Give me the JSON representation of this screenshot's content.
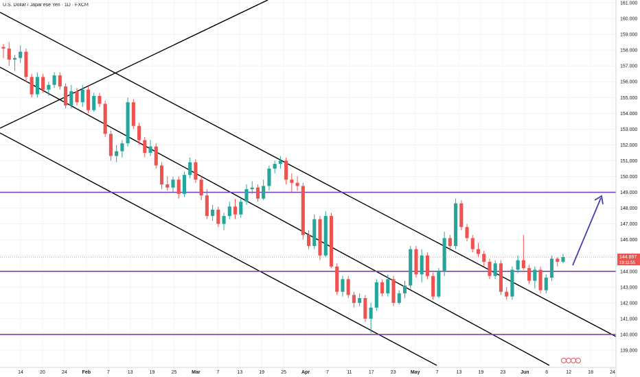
{
  "header": {
    "title": "U.S. Dollar / Japanese Yen · 1D · FXCM"
  },
  "price_badge": {
    "price": "144.897",
    "countdown": "19:11:55"
  },
  "colors": {
    "up": "#26a69a",
    "down": "#ef5350",
    "horizontal_line": "#7b3fc4",
    "channel_line": "#000000",
    "arrow": "#3f3fa8",
    "badge": "#ef5350"
  },
  "chart_data": {
    "type": "candlestick",
    "ylim": [
      138.5,
      161.2
    ],
    "y_ticks": [
      "139.000",
      "140.000",
      "141.000",
      "142.000",
      "143.000",
      "144.000",
      "145.000",
      "146.000",
      "147.000",
      "148.000",
      "149.000",
      "150.000",
      "151.000",
      "152.000",
      "153.000",
      "154.000",
      "155.000",
      "156.000",
      "157.000",
      "158.000",
      "159.000",
      "160.000",
      "161.000"
    ],
    "x_ticks": [
      {
        "label": "14",
        "bold": false
      },
      {
        "label": "20",
        "bold": false
      },
      {
        "label": "24",
        "bold": false
      },
      {
        "label": "Feb",
        "bold": true
      },
      {
        "label": "7",
        "bold": false
      },
      {
        "label": "13",
        "bold": false
      },
      {
        "label": "19",
        "bold": false
      },
      {
        "label": "25",
        "bold": false
      },
      {
        "label": "Mar",
        "bold": true
      },
      {
        "label": "7",
        "bold": false
      },
      {
        "label": "13",
        "bold": false
      },
      {
        "label": "19",
        "bold": false
      },
      {
        "label": "25",
        "bold": false
      },
      {
        "label": "Apr",
        "bold": true
      },
      {
        "label": "7",
        "bold": false
      },
      {
        "label": "11",
        "bold": false
      },
      {
        "label": "17",
        "bold": false
      },
      {
        "label": "23",
        "bold": false
      },
      {
        "label": "May",
        "bold": true
      },
      {
        "label": "7",
        "bold": false
      },
      {
        "label": "13",
        "bold": false
      },
      {
        "label": "19",
        "bold": false
      },
      {
        "label": "23",
        "bold": false
      },
      {
        "label": "Jun",
        "bold": true
      },
      {
        "label": "6",
        "bold": false
      },
      {
        "label": "12",
        "bold": false
      },
      {
        "label": "18",
        "bold": false
      },
      {
        "label": "24",
        "bold": false
      }
    ],
    "horizontal_levels": [
      149.0,
      144.0,
      140.0
    ],
    "candles": [
      {
        "o": 158.2,
        "h": 158.4,
        "l": 157.5,
        "c": 158.1
      },
      {
        "o": 158.1,
        "h": 158.5,
        "l": 157.0,
        "c": 157.4
      },
      {
        "o": 157.4,
        "h": 157.7,
        "l": 156.7,
        "c": 157.5
      },
      {
        "o": 157.5,
        "h": 158.3,
        "l": 157.2,
        "c": 157.9
      },
      {
        "o": 157.9,
        "h": 158.1,
        "l": 156.0,
        "c": 156.3
      },
      {
        "o": 156.3,
        "h": 156.5,
        "l": 155.0,
        "c": 155.2
      },
      {
        "o": 155.2,
        "h": 156.6,
        "l": 155.0,
        "c": 156.3
      },
      {
        "o": 156.3,
        "h": 156.5,
        "l": 155.3,
        "c": 155.5
      },
      {
        "o": 155.5,
        "h": 156.0,
        "l": 155.1,
        "c": 155.8
      },
      {
        "o": 155.8,
        "h": 156.6,
        "l": 155.6,
        "c": 156.4
      },
      {
        "o": 156.4,
        "h": 156.6,
        "l": 155.5,
        "c": 155.7
      },
      {
        "o": 155.7,
        "h": 155.9,
        "l": 154.3,
        "c": 154.5
      },
      {
        "o": 154.5,
        "h": 155.8,
        "l": 154.3,
        "c": 155.4
      },
      {
        "o": 155.4,
        "h": 155.6,
        "l": 154.5,
        "c": 154.7
      },
      {
        "o": 154.7,
        "h": 155.8,
        "l": 154.4,
        "c": 155.5
      },
      {
        "o": 155.5,
        "h": 155.7,
        "l": 154.0,
        "c": 154.2
      },
      {
        "o": 154.2,
        "h": 155.3,
        "l": 154.1,
        "c": 155.1
      },
      {
        "o": 155.1,
        "h": 155.3,
        "l": 154.4,
        "c": 154.6
      },
      {
        "o": 154.6,
        "h": 154.8,
        "l": 152.5,
        "c": 152.7
      },
      {
        "o": 152.7,
        "h": 152.9,
        "l": 151.0,
        "c": 151.3
      },
      {
        "o": 151.3,
        "h": 152.0,
        "l": 150.9,
        "c": 151.6
      },
      {
        "o": 151.6,
        "h": 152.3,
        "l": 151.2,
        "c": 152.1
      },
      {
        "o": 152.1,
        "h": 155.0,
        "l": 151.9,
        "c": 154.7
      },
      {
        "o": 154.7,
        "h": 154.9,
        "l": 153.0,
        "c": 153.2
      },
      {
        "o": 153.2,
        "h": 153.4,
        "l": 152.0,
        "c": 152.3
      },
      {
        "o": 152.3,
        "h": 152.5,
        "l": 151.2,
        "c": 151.5
      },
      {
        "o": 151.5,
        "h": 152.3,
        "l": 151.3,
        "c": 151.9
      },
      {
        "o": 151.9,
        "h": 152.1,
        "l": 150.5,
        "c": 150.7
      },
      {
        "o": 150.7,
        "h": 150.9,
        "l": 149.2,
        "c": 149.5
      },
      {
        "o": 149.5,
        "h": 150.0,
        "l": 149.1,
        "c": 149.3
      },
      {
        "o": 149.3,
        "h": 150.0,
        "l": 149.0,
        "c": 149.8
      },
      {
        "o": 149.8,
        "h": 150.0,
        "l": 148.6,
        "c": 148.9
      },
      {
        "o": 148.9,
        "h": 150.3,
        "l": 148.7,
        "c": 150.1
      },
      {
        "o": 150.1,
        "h": 151.2,
        "l": 149.9,
        "c": 150.9
      },
      {
        "o": 150.9,
        "h": 151.1,
        "l": 149.6,
        "c": 149.8
      },
      {
        "o": 149.8,
        "h": 150.0,
        "l": 148.5,
        "c": 148.8
      },
      {
        "o": 148.8,
        "h": 149.2,
        "l": 147.3,
        "c": 147.5
      },
      {
        "o": 147.5,
        "h": 148.2,
        "l": 147.2,
        "c": 147.9
      },
      {
        "o": 147.9,
        "h": 148.1,
        "l": 146.8,
        "c": 147.0
      },
      {
        "o": 147.0,
        "h": 147.7,
        "l": 146.6,
        "c": 147.5
      },
      {
        "o": 147.5,
        "h": 148.4,
        "l": 147.3,
        "c": 148.1
      },
      {
        "o": 148.1,
        "h": 148.6,
        "l": 147.3,
        "c": 147.6
      },
      {
        "o": 147.6,
        "h": 148.6,
        "l": 147.4,
        "c": 148.4
      },
      {
        "o": 148.4,
        "h": 149.5,
        "l": 148.2,
        "c": 149.2
      },
      {
        "o": 149.2,
        "h": 149.7,
        "l": 148.9,
        "c": 149.3
      },
      {
        "o": 149.3,
        "h": 149.5,
        "l": 148.4,
        "c": 148.6
      },
      {
        "o": 148.6,
        "h": 149.8,
        "l": 148.5,
        "c": 149.4
      },
      {
        "o": 149.4,
        "h": 150.7,
        "l": 149.1,
        "c": 150.5
      },
      {
        "o": 150.5,
        "h": 151.0,
        "l": 150.2,
        "c": 150.8
      },
      {
        "o": 150.8,
        "h": 151.3,
        "l": 150.5,
        "c": 151.0
      },
      {
        "o": 151.0,
        "h": 151.2,
        "l": 149.5,
        "c": 149.8
      },
      {
        "o": 149.8,
        "h": 150.2,
        "l": 149.0,
        "c": 149.6
      },
      {
        "o": 149.6,
        "h": 150.0,
        "l": 149.1,
        "c": 149.4
      },
      {
        "o": 149.4,
        "h": 149.6,
        "l": 146.0,
        "c": 146.3
      },
      {
        "o": 146.3,
        "h": 146.6,
        "l": 145.4,
        "c": 145.6
      },
      {
        "o": 145.6,
        "h": 147.6,
        "l": 145.4,
        "c": 147.3
      },
      {
        "o": 147.3,
        "h": 147.5,
        "l": 144.7,
        "c": 145.0
      },
      {
        "o": 145.0,
        "h": 147.8,
        "l": 144.9,
        "c": 147.5
      },
      {
        "o": 147.5,
        "h": 147.7,
        "l": 144.2,
        "c": 144.3
      },
      {
        "o": 144.3,
        "h": 144.5,
        "l": 142.5,
        "c": 142.7
      },
      {
        "o": 142.7,
        "h": 143.7,
        "l": 142.4,
        "c": 143.5
      },
      {
        "o": 143.5,
        "h": 143.7,
        "l": 142.3,
        "c": 142.5
      },
      {
        "o": 142.5,
        "h": 142.7,
        "l": 141.7,
        "c": 142.0
      },
      {
        "o": 142.0,
        "h": 142.6,
        "l": 141.8,
        "c": 142.3
      },
      {
        "o": 142.3,
        "h": 142.5,
        "l": 140.8,
        "c": 141.0
      },
      {
        "o": 141.0,
        "h": 142.0,
        "l": 140.1,
        "c": 141.7
      },
      {
        "o": 141.7,
        "h": 143.5,
        "l": 141.5,
        "c": 143.3
      },
      {
        "o": 143.3,
        "h": 143.5,
        "l": 142.4,
        "c": 142.6
      },
      {
        "o": 142.6,
        "h": 143.8,
        "l": 142.4,
        "c": 143.5
      },
      {
        "o": 143.5,
        "h": 143.7,
        "l": 141.8,
        "c": 142.0
      },
      {
        "o": 142.0,
        "h": 142.8,
        "l": 141.9,
        "c": 142.6
      },
      {
        "o": 142.6,
        "h": 143.4,
        "l": 142.3,
        "c": 143.1
      },
      {
        "o": 143.1,
        "h": 145.6,
        "l": 142.9,
        "c": 145.4
      },
      {
        "o": 145.4,
        "h": 145.6,
        "l": 143.6,
        "c": 143.8
      },
      {
        "o": 143.8,
        "h": 145.4,
        "l": 143.3,
        "c": 145.0
      },
      {
        "o": 145.0,
        "h": 145.2,
        "l": 143.5,
        "c": 143.7
      },
      {
        "o": 143.7,
        "h": 143.9,
        "l": 142.2,
        "c": 142.4
      },
      {
        "o": 142.4,
        "h": 144.2,
        "l": 142.3,
        "c": 144.0
      },
      {
        "o": 144.0,
        "h": 146.5,
        "l": 143.7,
        "c": 146.1
      },
      {
        "o": 146.1,
        "h": 146.3,
        "l": 145.3,
        "c": 145.6
      },
      {
        "o": 145.6,
        "h": 148.6,
        "l": 145.4,
        "c": 148.3
      },
      {
        "o": 148.3,
        "h": 148.5,
        "l": 146.6,
        "c": 146.8
      },
      {
        "o": 146.8,
        "h": 147.0,
        "l": 145.9,
        "c": 146.1
      },
      {
        "o": 146.1,
        "h": 146.3,
        "l": 145.2,
        "c": 145.4
      },
      {
        "o": 145.4,
        "h": 145.8,
        "l": 144.9,
        "c": 145.1
      },
      {
        "o": 145.1,
        "h": 145.3,
        "l": 144.3,
        "c": 144.6
      },
      {
        "o": 144.6,
        "h": 144.8,
        "l": 143.5,
        "c": 143.7
      },
      {
        "o": 143.7,
        "h": 144.7,
        "l": 143.5,
        "c": 144.5
      },
      {
        "o": 144.5,
        "h": 144.7,
        "l": 142.5,
        "c": 142.7
      },
      {
        "o": 142.7,
        "h": 143.0,
        "l": 142.2,
        "c": 142.4
      },
      {
        "o": 142.4,
        "h": 144.3,
        "l": 142.2,
        "c": 144.1
      },
      {
        "o": 144.1,
        "h": 145.0,
        "l": 143.9,
        "c": 144.7
      },
      {
        "o": 144.7,
        "h": 146.3,
        "l": 144.1,
        "c": 144.2
      },
      {
        "o": 144.2,
        "h": 144.4,
        "l": 143.2,
        "c": 143.4
      },
      {
        "o": 143.4,
        "h": 144.3,
        "l": 142.9,
        "c": 144.1
      },
      {
        "o": 144.1,
        "h": 144.3,
        "l": 142.6,
        "c": 142.8
      },
      {
        "o": 142.8,
        "h": 143.8,
        "l": 142.6,
        "c": 143.6
      },
      {
        "o": 143.6,
        "h": 145.0,
        "l": 143.4,
        "c": 144.8
      },
      {
        "o": 144.8,
        "h": 144.9,
        "l": 144.3,
        "c": 144.6
      },
      {
        "o": 144.6,
        "h": 145.1,
        "l": 144.5,
        "c": 144.9
      }
    ]
  }
}
